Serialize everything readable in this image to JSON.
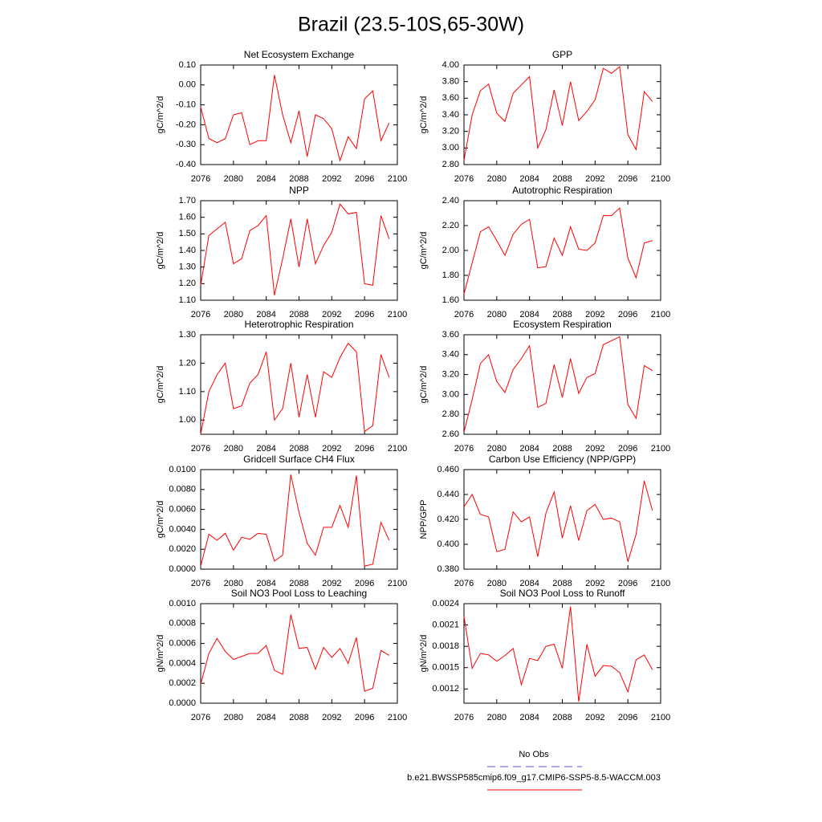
{
  "title": "Brazil (23.5-10S,65-30W)",
  "legend": [
    {
      "name": "No Obs",
      "color": "#5555dd",
      "dash": true
    },
    {
      "name": "b.e21.BWSSP585cmip6.f09_g17.CMIP6-SSP5-8.5-WACCM.003",
      "color": "#ff0000",
      "dash": false
    }
  ],
  "chart_data": [
    {
      "type": "line",
      "title": "Net Ecosystem Exchange",
      "ylabel": "gC/m^2/d",
      "color": "#ff0000",
      "x": [
        2076,
        2077,
        2078,
        2079,
        2080,
        2081,
        2082,
        2083,
        2084,
        2085,
        2086,
        2087,
        2088,
        2089,
        2090,
        2091,
        2092,
        2093,
        2094,
        2095,
        2096,
        2097,
        2098,
        2099
      ],
      "values": [
        -0.11,
        -0.27,
        -0.29,
        -0.27,
        -0.15,
        -0.14,
        -0.3,
        -0.28,
        -0.28,
        0.05,
        -0.15,
        -0.29,
        -0.13,
        -0.36,
        -0.15,
        -0.17,
        -0.22,
        -0.38,
        -0.26,
        -0.32,
        -0.07,
        -0.03,
        -0.28,
        -0.19
      ],
      "xlim": [
        2076,
        2100
      ],
      "xticks": [
        2076,
        2080,
        2084,
        2088,
        2092,
        2096,
        2100
      ],
      "ylim": [
        -0.4,
        0.1
      ],
      "yticks": [
        {
          "value": 0.1,
          "label": "0.10"
        },
        {
          "value": 0,
          "label": "0.00"
        },
        {
          "value": -0.1,
          "label": "-0.10"
        },
        {
          "value": -0.2,
          "label": "-0.20"
        },
        {
          "value": -0.3,
          "label": "-0.30"
        },
        {
          "value": -0.4,
          "label": "-0.40"
        }
      ]
    },
    {
      "type": "line",
      "title": "GPP",
      "ylabel": "gC/m^2/d",
      "color": "#ff0000",
      "x": [
        2076,
        2077,
        2078,
        2079,
        2080,
        2081,
        2082,
        2083,
        2084,
        2085,
        2086,
        2087,
        2088,
        2089,
        2090,
        2091,
        2092,
        2093,
        2094,
        2095,
        2096,
        2097,
        2098,
        2099
      ],
      "values": [
        2.85,
        3.4,
        3.69,
        3.77,
        3.42,
        3.32,
        3.66,
        3.76,
        3.86,
        3.0,
        3.22,
        3.7,
        3.27,
        3.8,
        3.33,
        3.44,
        3.58,
        3.96,
        3.9,
        3.98,
        3.16,
        2.98,
        3.68,
        3.56
      ],
      "xlim": [
        2076,
        2100
      ],
      "xticks": [
        2076,
        2080,
        2084,
        2088,
        2092,
        2096,
        2100
      ],
      "ylim": [
        2.8,
        4.0
      ],
      "yticks": [
        {
          "value": 4.0,
          "label": "4.00"
        },
        {
          "value": 3.8,
          "label": "3.80"
        },
        {
          "value": 3.6,
          "label": "3.60"
        },
        {
          "value": 3.4,
          "label": "3.40"
        },
        {
          "value": 3.2,
          "label": "3.20"
        },
        {
          "value": 3.0,
          "label": "3.00"
        },
        {
          "value": 2.8,
          "label": "2.80"
        }
      ]
    },
    {
      "type": "line",
      "title": "NPP",
      "ylabel": "gC/m^2/d",
      "color": "#ff0000",
      "x": [
        2076,
        2077,
        2078,
        2079,
        2080,
        2081,
        2082,
        2083,
        2084,
        2085,
        2086,
        2087,
        2088,
        2089,
        2090,
        2091,
        2092,
        2093,
        2094,
        2095,
        2096,
        2097,
        2098,
        2099
      ],
      "values": [
        1.19,
        1.49,
        1.53,
        1.57,
        1.32,
        1.35,
        1.52,
        1.55,
        1.61,
        1.13,
        1.35,
        1.59,
        1.3,
        1.59,
        1.32,
        1.43,
        1.51,
        1.68,
        1.62,
        1.63,
        1.2,
        1.19,
        1.61,
        1.47
      ],
      "xlim": [
        2076,
        2100
      ],
      "xticks": [
        2076,
        2080,
        2084,
        2088,
        2092,
        2096,
        2100
      ],
      "ylim": [
        1.1,
        1.7
      ],
      "yticks": [
        {
          "value": 1.7,
          "label": "1.70"
        },
        {
          "value": 1.6,
          "label": "1.60"
        },
        {
          "value": 1.5,
          "label": "1.50"
        },
        {
          "value": 1.4,
          "label": "1.40"
        },
        {
          "value": 1.3,
          "label": "1.30"
        },
        {
          "value": 1.2,
          "label": "1.20"
        },
        {
          "value": 1.1,
          "label": "1.10"
        }
      ]
    },
    {
      "type": "line",
      "title": "Autotrophic Respiration",
      "ylabel": "gC/m^2/d",
      "color": "#ff0000",
      "x": [
        2076,
        2077,
        2078,
        2079,
        2080,
        2081,
        2082,
        2083,
        2084,
        2085,
        2086,
        2087,
        2088,
        2089,
        2090,
        2091,
        2092,
        2093,
        2094,
        2095,
        2096,
        2097,
        2098,
        2099
      ],
      "values": [
        1.65,
        1.9,
        2.15,
        2.19,
        2.08,
        1.96,
        2.13,
        2.21,
        2.25,
        1.86,
        1.87,
        2.1,
        1.96,
        2.19,
        2.01,
        2.0,
        2.06,
        2.28,
        2.28,
        2.34,
        1.94,
        1.78,
        2.06,
        2.08
      ],
      "xlim": [
        2076,
        2100
      ],
      "xticks": [
        2076,
        2080,
        2084,
        2088,
        2092,
        2096,
        2100
      ],
      "ylim": [
        1.6,
        2.4
      ],
      "yticks": [
        {
          "value": 2.4,
          "label": "2.40"
        },
        {
          "value": 2.2,
          "label": "2.20"
        },
        {
          "value": 2.0,
          "label": "2.00"
        },
        {
          "value": 1.8,
          "label": "1.80"
        },
        {
          "value": 1.6,
          "label": "1.60"
        }
      ]
    },
    {
      "type": "line",
      "title": "Heterotrophic Respiration",
      "ylabel": "gC/m^2/d",
      "color": "#ff0000",
      "x": [
        2076,
        2077,
        2078,
        2079,
        2080,
        2081,
        2082,
        2083,
        2084,
        2085,
        2086,
        2087,
        2088,
        2089,
        2090,
        2091,
        2092,
        2093,
        2094,
        2095,
        2096,
        2097,
        2098,
        2099
      ],
      "values": [
        0.95,
        1.1,
        1.16,
        1.2,
        1.04,
        1.05,
        1.13,
        1.16,
        1.24,
        1.0,
        1.04,
        1.2,
        1.01,
        1.16,
        1.01,
        1.17,
        1.15,
        1.22,
        1.27,
        1.24,
        0.96,
        0.98,
        1.23,
        1.15
      ],
      "xlim": [
        2076,
        2100
      ],
      "xticks": [
        2076,
        2080,
        2084,
        2088,
        2092,
        2096,
        2100
      ],
      "ylim": [
        0.95,
        1.3
      ],
      "yticks": [
        {
          "value": 1.3,
          "label": "1.30"
        },
        {
          "value": 1.2,
          "label": "1.20"
        },
        {
          "value": 1.1,
          "label": "1.10"
        },
        {
          "value": 1.0,
          "label": "1.00"
        }
      ]
    },
    {
      "type": "line",
      "title": "Ecosystem Respiration",
      "ylabel": "gC/m^2/d",
      "color": "#ff0000",
      "x": [
        2076,
        2077,
        2078,
        2079,
        2080,
        2081,
        2082,
        2083,
        2084,
        2085,
        2086,
        2087,
        2088,
        2089,
        2090,
        2091,
        2092,
        2093,
        2094,
        2095,
        2096,
        2097,
        2098,
        2099
      ],
      "values": [
        2.62,
        2.95,
        3.31,
        3.4,
        3.13,
        3.02,
        3.25,
        3.36,
        3.49,
        2.87,
        2.91,
        3.3,
        2.97,
        3.36,
        3.01,
        3.17,
        3.21,
        3.5,
        3.54,
        3.58,
        2.9,
        2.76,
        3.29,
        3.24
      ],
      "xlim": [
        2076,
        2100
      ],
      "xticks": [
        2076,
        2080,
        2084,
        2088,
        2092,
        2096,
        2100
      ],
      "ylim": [
        2.6,
        3.6
      ],
      "yticks": [
        {
          "value": 3.6,
          "label": "3.60"
        },
        {
          "value": 3.4,
          "label": "3.40"
        },
        {
          "value": 3.2,
          "label": "3.20"
        },
        {
          "value": 3.0,
          "label": "3.00"
        },
        {
          "value": 2.8,
          "label": "2.80"
        },
        {
          "value": 2.6,
          "label": "2.60"
        }
      ]
    },
    {
      "type": "line",
      "title": "Gridcell Surface CH4 Flux",
      "ylabel": "gC/m^2/d",
      "color": "#ff0000",
      "x": [
        2076,
        2077,
        2078,
        2079,
        2080,
        2081,
        2082,
        2083,
        2084,
        2085,
        2086,
        2087,
        2088,
        2089,
        2090,
        2091,
        2092,
        2093,
        2094,
        2095,
        2096,
        2097,
        2098,
        2099
      ],
      "values": [
        0.0003,
        0.0035,
        0.0029,
        0.0036,
        0.0019,
        0.0032,
        0.003,
        0.0036,
        0.0035,
        0.0008,
        0.0014,
        0.0095,
        0.0057,
        0.0026,
        0.0014,
        0.0042,
        0.0042,
        0.0064,
        0.0042,
        0.0094,
        0.0003,
        0.0005,
        0.0047,
        0.0029
      ],
      "xlim": [
        2076,
        2100
      ],
      "xticks": [
        2076,
        2080,
        2084,
        2088,
        2092,
        2096,
        2100
      ],
      "ylim": [
        0,
        0.01
      ],
      "yticks": [
        {
          "value": 0.01,
          "label": "0.0100"
        },
        {
          "value": 0.008,
          "label": "0.0080"
        },
        {
          "value": 0.006,
          "label": "0.0060"
        },
        {
          "value": 0.004,
          "label": "0.0040"
        },
        {
          "value": 0.002,
          "label": "0.0020"
        },
        {
          "value": 0,
          "label": "0.0000"
        }
      ]
    },
    {
      "type": "line",
      "title": "Carbon Use Efficiency (NPP/GPP)",
      "ylabel": "NPP/GPP",
      "color": "#ff0000",
      "x": [
        2076,
        2077,
        2078,
        2079,
        2080,
        2081,
        2082,
        2083,
        2084,
        2085,
        2086,
        2087,
        2088,
        2089,
        2090,
        2091,
        2092,
        2093,
        2094,
        2095,
        2096,
        2097,
        2098,
        2099
      ],
      "values": [
        0.43,
        0.44,
        0.424,
        0.422,
        0.394,
        0.396,
        0.426,
        0.418,
        0.422,
        0.39,
        0.425,
        0.442,
        0.405,
        0.431,
        0.403,
        0.427,
        0.432,
        0.42,
        0.421,
        0.418,
        0.386,
        0.408,
        0.451,
        0.427
      ],
      "xlim": [
        2076,
        2100
      ],
      "xticks": [
        2076,
        2080,
        2084,
        2088,
        2092,
        2096,
        2100
      ],
      "ylim": [
        0.38,
        0.46
      ],
      "yticks": [
        {
          "value": 0.46,
          "label": "0.460"
        },
        {
          "value": 0.44,
          "label": "0.440"
        },
        {
          "value": 0.42,
          "label": "0.420"
        },
        {
          "value": 0.4,
          "label": "0.400"
        },
        {
          "value": 0.38,
          "label": "0.380"
        }
      ]
    },
    {
      "type": "line",
      "title": "Soil NO3 Pool Loss to Leaching",
      "ylabel": "gN/m^2/d",
      "color": "#ff0000",
      "x": [
        2076,
        2077,
        2078,
        2079,
        2080,
        2081,
        2082,
        2083,
        2084,
        2085,
        2086,
        2087,
        2088,
        2089,
        2090,
        2091,
        2092,
        2093,
        2094,
        2095,
        2096,
        2097,
        2098,
        2099
      ],
      "values": [
        0.00019,
        0.0005,
        0.00065,
        0.00052,
        0.00044,
        0.00047,
        0.0005,
        0.0005,
        0.00058,
        0.00033,
        0.00029,
        0.00089,
        0.00055,
        0.00056,
        0.00034,
        0.00056,
        0.00046,
        0.00055,
        0.0004,
        0.00066,
        0.00012,
        0.00015,
        0.00053,
        0.00048
      ],
      "xlim": [
        2076,
        2100
      ],
      "xticks": [
        2076,
        2080,
        2084,
        2088,
        2092,
        2096,
        2100
      ],
      "ylim": [
        0,
        0.001
      ],
      "yticks": [
        {
          "value": 0.001,
          "label": "0.0010"
        },
        {
          "value": 0.0008,
          "label": "0.0008"
        },
        {
          "value": 0.0006,
          "label": "0.0006"
        },
        {
          "value": 0.0004,
          "label": "0.0004"
        },
        {
          "value": 0.0002,
          "label": "0.0002"
        },
        {
          "value": 0,
          "label": "0.0000"
        }
      ]
    },
    {
      "type": "line",
      "title": "Soil NO3 Pool Loss to Runoff",
      "ylabel": "gN/m^2/d",
      "color": "#ff0000",
      "x": [
        2076,
        2077,
        2078,
        2079,
        2080,
        2081,
        2082,
        2083,
        2084,
        2085,
        2086,
        2087,
        2088,
        2089,
        2090,
        2091,
        2092,
        2093,
        2094,
        2095,
        2096,
        2097,
        2098,
        2099
      ],
      "values": [
        0.00222,
        0.00149,
        0.0017,
        0.00168,
        0.00159,
        0.00167,
        0.00177,
        0.00126,
        0.00163,
        0.0016,
        0.0018,
        0.00183,
        0.00149,
        0.00236,
        0.00102,
        0.00183,
        0.00138,
        0.00153,
        0.00152,
        0.00143,
        0.00116,
        0.00161,
        0.00168,
        0.00147
      ],
      "xlim": [
        2076,
        2100
      ],
      "xticks": [
        2076,
        2080,
        2084,
        2088,
        2092,
        2096,
        2100
      ],
      "ylim": [
        0.001,
        0.0024
      ],
      "yticks": [
        {
          "value": 0.0024,
          "label": "0.0024"
        },
        {
          "value": 0.0021,
          "label": "0.0021"
        },
        {
          "value": 0.0018,
          "label": "0.0018"
        },
        {
          "value": 0.0015,
          "label": "0.0015"
        },
        {
          "value": 0.0012,
          "label": "0.0012"
        }
      ]
    }
  ]
}
